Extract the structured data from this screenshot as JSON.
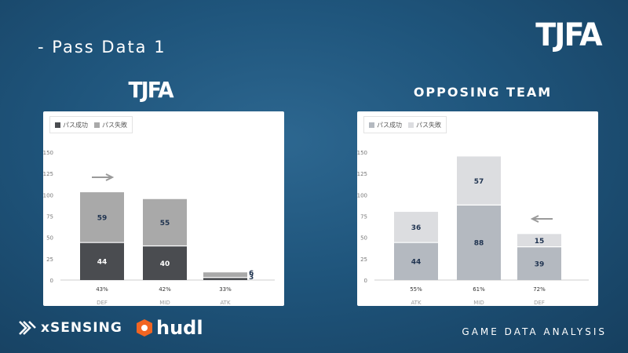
{
  "slide": {
    "title": "-  Pass Data 1",
    "footer": "GAME DATA ANALYSIS"
  },
  "logos": {
    "top_right": "TJFA",
    "left_team": "TJFA"
  },
  "sponsors": {
    "xsensing": "xSENSING",
    "hudl": "hudl"
  },
  "colors": {
    "background": "#1f557c",
    "left_success": "#4a4c50",
    "left_fail": "#a9a9a9",
    "right_success": "#b4b9c0",
    "right_fail": "#dcdde0",
    "arrow": "#9a9a9a"
  },
  "chart_data": [
    {
      "type": "bar",
      "stacked": true,
      "team_label": "TJFA",
      "categories": [
        "DEF",
        "MID",
        "ATK"
      ],
      "percent_labels": [
        "43%",
        "42%",
        "33%"
      ],
      "series": [
        {
          "name": "パス成功",
          "values": [
            44,
            40,
            3
          ],
          "color": "#4a4c50"
        },
        {
          "name": "パス失敗",
          "values": [
            59,
            55,
            6
          ],
          "color": "#a9a9a9"
        }
      ],
      "ylim": [
        0,
        150
      ],
      "yticks": [
        "0",
        "25",
        "50",
        "75",
        "100",
        "125",
        "150"
      ],
      "arrow": "right",
      "legend": "top-left",
      "grid": false
    },
    {
      "type": "bar",
      "stacked": true,
      "team_label": "OPPOSING TEAM",
      "categories": [
        "ATK",
        "MID",
        "DEF"
      ],
      "percent_labels": [
        "55%",
        "61%",
        "72%"
      ],
      "series": [
        {
          "name": "パス成功",
          "values": [
            44,
            88,
            39
          ],
          "color": "#b4b9c0"
        },
        {
          "name": "パス失敗",
          "values": [
            36,
            57,
            15
          ],
          "color": "#dcdde0"
        }
      ],
      "ylim": [
        0,
        150
      ],
      "yticks": [
        "0",
        "25",
        "50",
        "75",
        "100",
        "125",
        "150"
      ],
      "arrow": "left",
      "legend": "top-left",
      "grid": false
    }
  ]
}
